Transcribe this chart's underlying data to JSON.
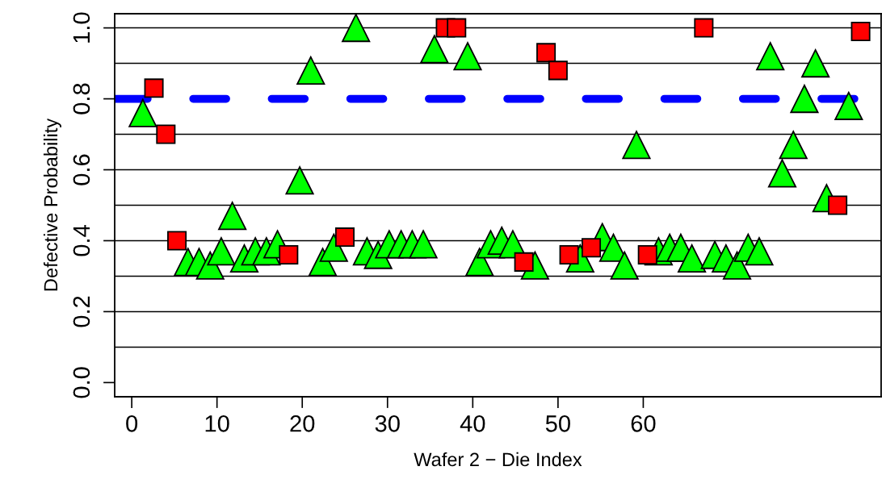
{
  "chart_data": {
    "type": "scatter",
    "xlabel": "Wafer 2 − Die Index",
    "ylabel": "Defective Probability",
    "xlim": [
      -2,
      87.9
    ],
    "ylim": [
      -0.04,
      1.04
    ],
    "xticks": [
      0,
      10,
      20,
      30,
      40,
      50,
      60
    ],
    "yticks": [
      {
        "value": 0,
        "label": "0.0"
      },
      {
        "value": 0.2,
        "label": "0.2"
      },
      {
        "value": 0.4,
        "label": "0.4"
      },
      {
        "value": 0.6,
        "label": "0.6"
      },
      {
        "value": 0.8,
        "label": "0.8"
      },
      {
        "value": 1.0,
        "label": "1.0"
      }
    ],
    "grid": false,
    "legend": false,
    "ref_lines": [
      {
        "axis": "y",
        "value": 0.1,
        "color": "#000000",
        "line_style": "solid"
      },
      {
        "axis": "y",
        "value": 0.2,
        "color": "#000000",
        "line_style": "solid"
      },
      {
        "axis": "y",
        "value": 0.3,
        "color": "#000000",
        "line_style": "solid"
      },
      {
        "axis": "y",
        "value": 0.4,
        "color": "#000000",
        "line_style": "solid"
      },
      {
        "axis": "y",
        "value": 0.5,
        "color": "#000000",
        "line_style": "solid"
      },
      {
        "axis": "y",
        "value": 0.6,
        "color": "#000000",
        "line_style": "solid"
      },
      {
        "axis": "y",
        "value": 0.7,
        "color": "#000000",
        "line_style": "solid"
      },
      {
        "axis": "y",
        "value": 0.9,
        "color": "#000000",
        "line_style": "solid"
      },
      {
        "axis": "y",
        "value": 1.0,
        "color": "#000000",
        "line_style": "solid"
      },
      {
        "axis": "y",
        "value": 0.8,
        "color": "#0000ff",
        "line_style": "dashed"
      }
    ],
    "series": [
      {
        "color": "#00ff00",
        "marker": "triangle",
        "x": [
          1.3,
          6.6,
          7.9,
          9.2,
          10.5,
          11.8,
          13.2,
          14.5,
          15.8,
          17.1,
          19.7,
          21.0,
          22.4,
          23.7,
          26.3,
          27.6,
          28.9,
          30.2,
          31.6,
          32.9,
          34.2,
          35.5,
          39.4,
          40.8,
          42.1,
          43.4,
          44.7,
          47.3,
          52.6,
          55.2,
          56.5,
          57.8,
          59.2,
          61.8,
          63.1,
          64.4,
          65.7,
          68.4,
          69.7,
          71.0,
          72.3,
          73.6,
          74.9,
          76.3,
          77.6,
          78.9,
          80.2,
          81.5,
          84.1
        ],
        "values": [
          0.76,
          0.34,
          0.34,
          0.33,
          0.37,
          0.47,
          0.35,
          0.37,
          0.37,
          0.39,
          0.57,
          0.88,
          0.34,
          0.38,
          1.0,
          0.37,
          0.36,
          0.39,
          0.39,
          0.39,
          0.39,
          0.94,
          0.92,
          0.34,
          0.39,
          0.4,
          0.39,
          0.33,
          0.35,
          0.41,
          0.38,
          0.33,
          0.67,
          0.37,
          0.38,
          0.38,
          0.35,
          0.36,
          0.35,
          0.33,
          0.38,
          0.37,
          0.92,
          0.59,
          0.67,
          0.8,
          0.9,
          0.52,
          0.78
        ]
      },
      {
        "color": "#ff0000",
        "marker": "square",
        "x": [
          2.6,
          4.0,
          5.3,
          18.4,
          25.0,
          36.8,
          38.1,
          46.0,
          48.6,
          50.0,
          51.3,
          53.9,
          60.5,
          67.1,
          82.8,
          85.5
        ],
        "values": [
          0.83,
          0.7,
          0.4,
          0.36,
          0.41,
          1.0,
          1.0,
          0.34,
          0.93,
          0.88,
          0.36,
          0.38,
          0.36,
          1.0,
          0.5,
          0.99
        ]
      }
    ]
  }
}
